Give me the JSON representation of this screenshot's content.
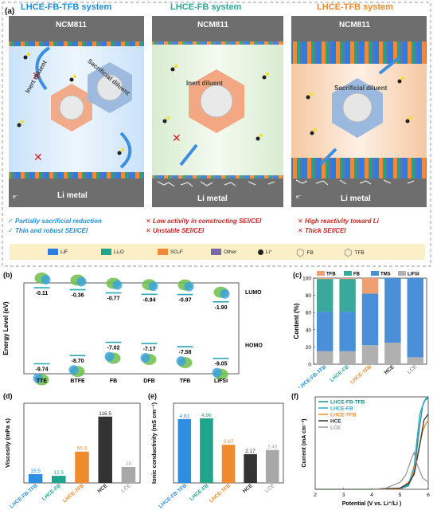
{
  "figure": {
    "panel_a": {
      "label": "(a)",
      "systems": [
        {
          "title": "LHCE-FB-TFB system",
          "color": "#1f8fd6",
          "top_label": "NCM811",
          "bottom_label": "Li metal",
          "diluent_labels": [
            "Inert diluent",
            "Sacrificial diluent"
          ],
          "e_label": "e⁻",
          "bullets": [
            {
              "mark": "✓",
              "text": "Partially sacrificial reduction"
            },
            {
              "mark": "✓",
              "text": "Thin and robust SEI/CEI"
            }
          ]
        },
        {
          "title": "LHCE-FB system",
          "color": "#2aa89a",
          "top_label": "NCM811",
          "bottom_label": "Li metal",
          "diluent_labels": [
            "Inert diluent"
          ],
          "bullets": [
            {
              "mark": "✕",
              "text": "Low activity in constructing SEI/CEI"
            },
            {
              "mark": "✕",
              "text": "Unstable SEI/CEI"
            }
          ]
        },
        {
          "title": "LHCE-TFB system",
          "color": "#ef8a2e",
          "top_label": "NCM811",
          "bottom_label": "Li metal",
          "diluent_labels": [
            "Sacrificial diluent"
          ],
          "e_label": "e⁻",
          "bullets": [
            {
              "mark": "✕",
              "text": "High reactivity toward Li"
            },
            {
              "mark": "✕",
              "text": "Thick SEI/CEI"
            }
          ]
        }
      ],
      "legend": [
        {
          "name": "LiF",
          "color": "#2b7de0"
        },
        {
          "name": "Li₂O",
          "color": "#1ea58c"
        },
        {
          "name": "SO₂F",
          "color": "#ee8a3c"
        },
        {
          "name": "Other",
          "color": "#7a67a8"
        },
        {
          "name": "Li⁺",
          "color": "#222222"
        },
        {
          "name": "FB",
          "color": "#888888"
        },
        {
          "name": "TFB",
          "color": "#888888"
        }
      ]
    },
    "panel_b": {
      "label": "(b)",
      "chart_data": {
        "type": "energy-level",
        "ylabel": "Energy Level (eV)",
        "categories": [
          "TTE",
          "BTFE",
          "FB",
          "DFB",
          "TFB",
          "LiFSI"
        ],
        "lumo": [
          -0.11,
          -0.36,
          -0.77,
          -0.94,
          -0.97,
          -1.9
        ],
        "homo": [
          -9.74,
          -8.7,
          -7.02,
          -7.17,
          -7.58,
          -9.05
        ],
        "lumo_labels": [
          "-0.11",
          "-0.36",
          "-0.77",
          "-0.94",
          "-0.97",
          "-1.90"
        ],
        "homo_labels": [
          "-9.74",
          "-8.70",
          "-7.02",
          "-7.17",
          "-7.58",
          "-9.05"
        ],
        "annotations": [
          "LUMO",
          "HOMO"
        ]
      }
    },
    "panel_c": {
      "label": "(c)",
      "chart_data": {
        "type": "bar",
        "stacked": true,
        "ylabel": "Content (%)",
        "categories": [
          "LHCE-FB-TFB",
          "LHCE-FB",
          "LHCE-TFB",
          "HCE",
          "LCE"
        ],
        "category_colors": [
          "#1f8fd6",
          "#2aa89a",
          "#ef8a2e",
          "#222222",
          "#9a9a9a"
        ],
        "ylim": [
          0,
          100
        ],
        "yticks": [
          "0",
          "20",
          "40",
          "60",
          "80",
          "100"
        ],
        "legend": [
          {
            "name": "TFB",
            "color": "#f0a070"
          },
          {
            "name": "FB",
            "color": "#3aa89a"
          },
          {
            "name": "TMS",
            "color": "#4a90d9"
          },
          {
            "name": "LiFSI",
            "color": "#b0b0b0"
          }
        ],
        "series": [
          {
            "name": "LiFSI",
            "color": "#b0b0b0",
            "values": [
              15,
              15,
              22,
              25,
              8
            ]
          },
          {
            "name": "TMS",
            "color": "#4a90d9",
            "values": [
              46,
              46,
              60,
              75,
              92
            ]
          },
          {
            "name": "FB",
            "color": "#3aa89a",
            "values": [
              38,
              38,
              0,
              0,
              0
            ]
          },
          {
            "name": "TFB",
            "color": "#f0a070",
            "values": [
              1,
              1,
              18,
              0,
              0
            ]
          }
        ]
      }
    },
    "panel_d": {
      "label": "(d)",
      "chart_data": {
        "type": "bar",
        "ylabel": "Viscosity (mPa s)",
        "categories": [
          "LHCE-FB-TFB",
          "LHCE-FB",
          "LHCE-TFB",
          "HCE",
          "LCE"
        ],
        "values": [
          15.5,
          12.5,
          55.0,
          116.5,
          28
        ],
        "value_labels": [
          "15.5",
          "12.5",
          "55.0",
          "116.5",
          "28"
        ],
        "colors": [
          "#2e8fe0",
          "#1ea58c",
          "#ef8a2e",
          "#333333",
          "#a8a8a8"
        ],
        "ylim": [
          0,
          140
        ]
      }
    },
    "panel_e": {
      "label": "(e)",
      "chart_data": {
        "type": "bar",
        "ylabel": "Ionic conductivity (mS cm⁻¹)",
        "categories": [
          "LHCE-FB-TFB",
          "LHCE-FB",
          "LHCE-TFB",
          "HCE",
          "LCE"
        ],
        "values": [
          4.81,
          4.86,
          2.87,
          2.17,
          2.48
        ],
        "value_labels": [
          "4.81",
          "4.86",
          "2.87",
          "2.17",
          "2.48"
        ],
        "colors": [
          "#2e8fe0",
          "#1ea58c",
          "#ef8a2e",
          "#333333",
          "#a8a8a8"
        ],
        "ylim": [
          0,
          6
        ]
      }
    },
    "panel_f": {
      "label": "(f)",
      "chart_data": {
        "type": "line",
        "xlabel": "Potential (V vs. Li⁺/Li )",
        "ylabel": "Current (mA cm⁻²)",
        "xlim": [
          2,
          6
        ],
        "ylim": [
          0,
          8
        ],
        "xticks": [
          "2",
          "3",
          "4",
          "5",
          "6"
        ],
        "series": [
          {
            "name": "LHCE-FB-TFB",
            "color": "#1f8a8a",
            "x": [
              2,
              4,
              5,
              5.3,
              5.5,
              5.7,
              5.8,
              5.9,
              6
            ],
            "y": [
              0,
              0,
              0.05,
              0.3,
              1.5,
              5.5,
              7.2,
              7.8,
              8
            ]
          },
          {
            "name": "LHCE-FB",
            "color": "#2aa8c8",
            "x": [
              2,
              4,
              5,
              5.3,
              5.5,
              5.7,
              5.85,
              6
            ],
            "y": [
              0,
              0,
              0.05,
              0.4,
              2.0,
              6.5,
              7.6,
              7.9
            ]
          },
          {
            "name": "LHCE-TFB",
            "color": "#ef8a2e",
            "x": [
              2,
              4,
              5,
              5.4,
              5.6,
              5.8,
              5.9,
              6
            ],
            "y": [
              0,
              0,
              0.05,
              0.8,
              2.8,
              5.0,
              5.6,
              6
            ]
          },
          {
            "name": "HCE",
            "color": "#333333",
            "x": [
              2,
              4,
              5,
              5.3,
              5.5,
              5.7,
              5.85,
              6
            ],
            "y": [
              0,
              0,
              0.1,
              0.5,
              1.3,
              3.8,
              6.0,
              6.5
            ]
          },
          {
            "name": "LCE",
            "color": "#999999",
            "x": [
              2,
              4,
              4.5,
              5,
              5.2,
              5.4,
              5.5,
              5.6,
              5.8,
              6
            ],
            "y": [
              0,
              0,
              0.1,
              0.6,
              1.2,
              2.6,
              3.2,
              2.2,
              1.0,
              0.6
            ]
          }
        ]
      }
    }
  }
}
